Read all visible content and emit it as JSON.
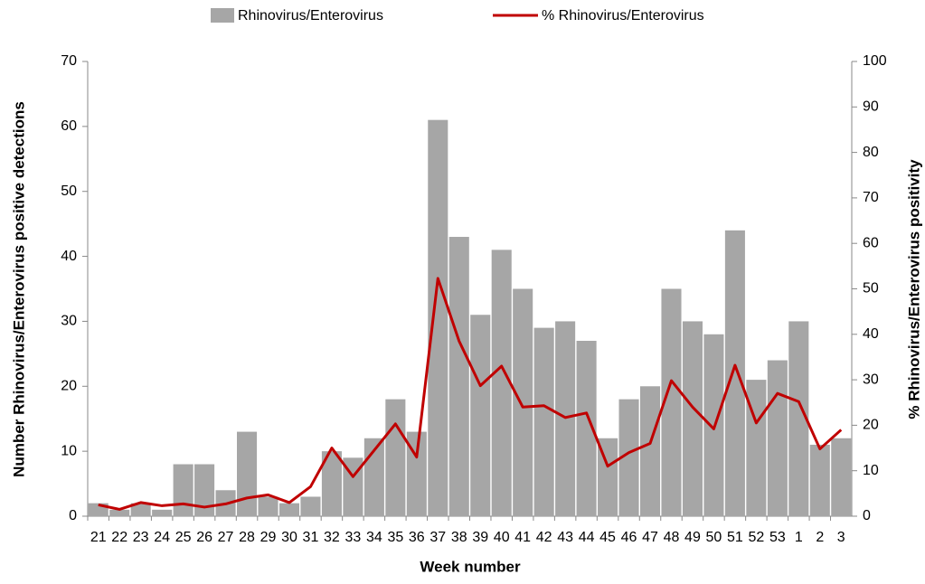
{
  "chart_data": {
    "type": "bar",
    "categories": [
      "21",
      "22",
      "23",
      "24",
      "25",
      "26",
      "27",
      "28",
      "29",
      "30",
      "31",
      "32",
      "33",
      "34",
      "35",
      "36",
      "37",
      "38",
      "39",
      "40",
      "41",
      "42",
      "43",
      "44",
      "45",
      "46",
      "47",
      "48",
      "49",
      "50",
      "51",
      "52",
      "53",
      "1",
      "2",
      "3"
    ],
    "series": [
      {
        "name": "Rhinovirus/Enterovirus",
        "type": "bar",
        "color": "#a6a6a6",
        "values": [
          2,
          1,
          2,
          1,
          8,
          8,
          4,
          13,
          3,
          2,
          3,
          10,
          9,
          12,
          18,
          13,
          61,
          43,
          31,
          41,
          35,
          29,
          30,
          27,
          12,
          18,
          20,
          35,
          30,
          28,
          44,
          21,
          24,
          30,
          11,
          12
        ]
      },
      {
        "name": "% Rhinovirus/Enterovirus",
        "type": "line",
        "axis": "y2",
        "color": "#c00000",
        "values": [
          2.5,
          1.5,
          3,
          2.3,
          2.7,
          2,
          2.7,
          4,
          4.7,
          3,
          6.5,
          15,
          8.7,
          14.5,
          20.3,
          13,
          52.3,
          38.5,
          28.7,
          33,
          24,
          24.3,
          21.7,
          22.7,
          11,
          14,
          16,
          29.8,
          24,
          19.2,
          33.2,
          20.5,
          27,
          25.2,
          14.8,
          19
        ]
      }
    ],
    "xlabel": "Week number",
    "ylabel": "Number Rhinovirus/Enterovirus positive detections",
    "y2label": "% Rhinovirus/Enterovirus positivity",
    "ylim": [
      0,
      70
    ],
    "yticks": [
      0,
      10,
      20,
      30,
      40,
      50,
      60,
      70
    ],
    "y2lim": [
      0,
      100
    ],
    "y2ticks": [
      0,
      10,
      20,
      30,
      40,
      50,
      60,
      70,
      80,
      90,
      100
    ],
    "legend": "top"
  }
}
